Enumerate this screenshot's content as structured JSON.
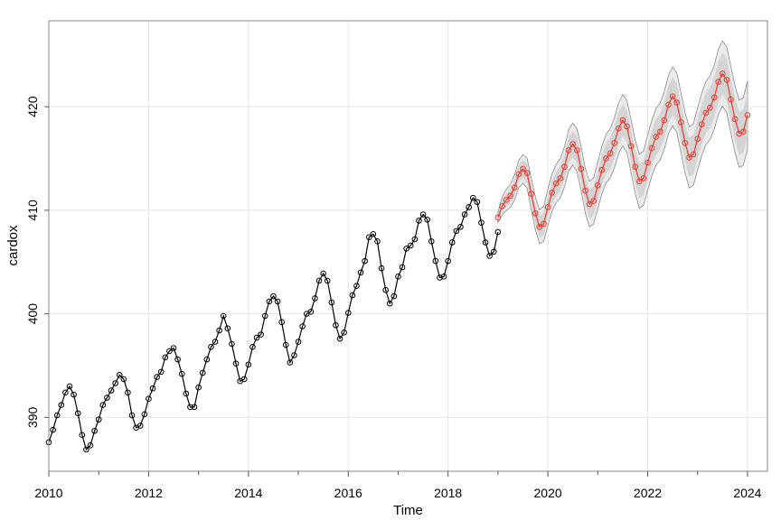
{
  "chart_data": {
    "type": "line",
    "title": "",
    "xlabel": "Time",
    "ylabel": "cardox",
    "xlim": [
      2010,
      2024.4
    ],
    "ylim": [
      384.8,
      428.3
    ],
    "x_ticks": [
      2010,
      2012,
      2014,
      2016,
      2018,
      2020,
      2022,
      2024
    ],
    "x_tick_labels": [
      "2010",
      "2012",
      "2014",
      "2016",
      "2018",
      "2020",
      "2022",
      "2024"
    ],
    "y_ticks": [
      390,
      400,
      410,
      420
    ],
    "y_tick_labels": [
      "390",
      "400",
      "410",
      "420"
    ],
    "grid": true,
    "colors": {
      "observed": "#000000",
      "forecast": "#e8392c",
      "band_inner": "#d4d4d4",
      "band_outer": "#ebebeb",
      "band_edge": "#8c8c8c",
      "grid": "#e5e5e5"
    },
    "observed": {
      "start": [
        2010,
        1
      ],
      "frequency": 12,
      "values": [
        387.6,
        388.8,
        390.2,
        391.2,
        392.4,
        393.0,
        392.2,
        390.4,
        388.3,
        386.9,
        387.3,
        388.7,
        389.8,
        391.2,
        391.9,
        392.6,
        393.3,
        394.1,
        393.7,
        392.4,
        390.2,
        389.0,
        389.2,
        390.3,
        391.8,
        392.8,
        393.9,
        394.4,
        395.8,
        396.4,
        396.7,
        395.6,
        394.2,
        392.3,
        391.0,
        391.0,
        392.9,
        394.3,
        395.6,
        396.8,
        397.3,
        398.4,
        399.8,
        398.6,
        397.1,
        395.2,
        393.5,
        393.7,
        395.1,
        396.8,
        397.7,
        398.0,
        399.8,
        401.2,
        401.7,
        401.2,
        399.2,
        397.0,
        395.3,
        396.0,
        397.3,
        398.8,
        400.0,
        400.2,
        401.5,
        403.2,
        403.9,
        403.2,
        401.1,
        398.9,
        397.6,
        398.2,
        400.1,
        401.8,
        402.7,
        404.0,
        405.1,
        407.4,
        407.7,
        407.0,
        404.4,
        402.3,
        401.0,
        401.7,
        403.6,
        404.5,
        406.3,
        406.6,
        407.2,
        409.0,
        409.6,
        409.1,
        407.0,
        405.1,
        403.5,
        403.6,
        405.1,
        406.9,
        408.0,
        408.4,
        409.6,
        410.3,
        411.2,
        410.8,
        408.8,
        406.9,
        405.6,
        406.0,
        407.9
      ]
    },
    "forecast": {
      "start": [
        2019,
        1
      ],
      "frequency": 12,
      "values": [
        409.3,
        410.4,
        411.0,
        411.4,
        412.2,
        413.5,
        414.0,
        413.6,
        411.6,
        409.7,
        408.4,
        408.7,
        410.3,
        411.7,
        412.6,
        413.1,
        414.2,
        415.8,
        416.4,
        415.8,
        414.0,
        411.9,
        410.6,
        410.9,
        412.4,
        413.9,
        415.0,
        415.5,
        416.5,
        417.9,
        418.7,
        418.1,
        416.2,
        414.2,
        412.8,
        413.1,
        414.6,
        416.0,
        417.1,
        417.6,
        418.7,
        420.2,
        421.0,
        420.4,
        418.5,
        416.5,
        415.1,
        415.4,
        416.9,
        418.3,
        419.4,
        419.9,
        420.9,
        422.4,
        423.2,
        422.6,
        420.7,
        418.8,
        417.4,
        417.6,
        419.2
      ],
      "band_halfwidth_80": {
        "start": 0.3,
        "end": 2.1
      },
      "band_halfwidth_95": {
        "start": 0.5,
        "end": 3.3
      }
    }
  }
}
